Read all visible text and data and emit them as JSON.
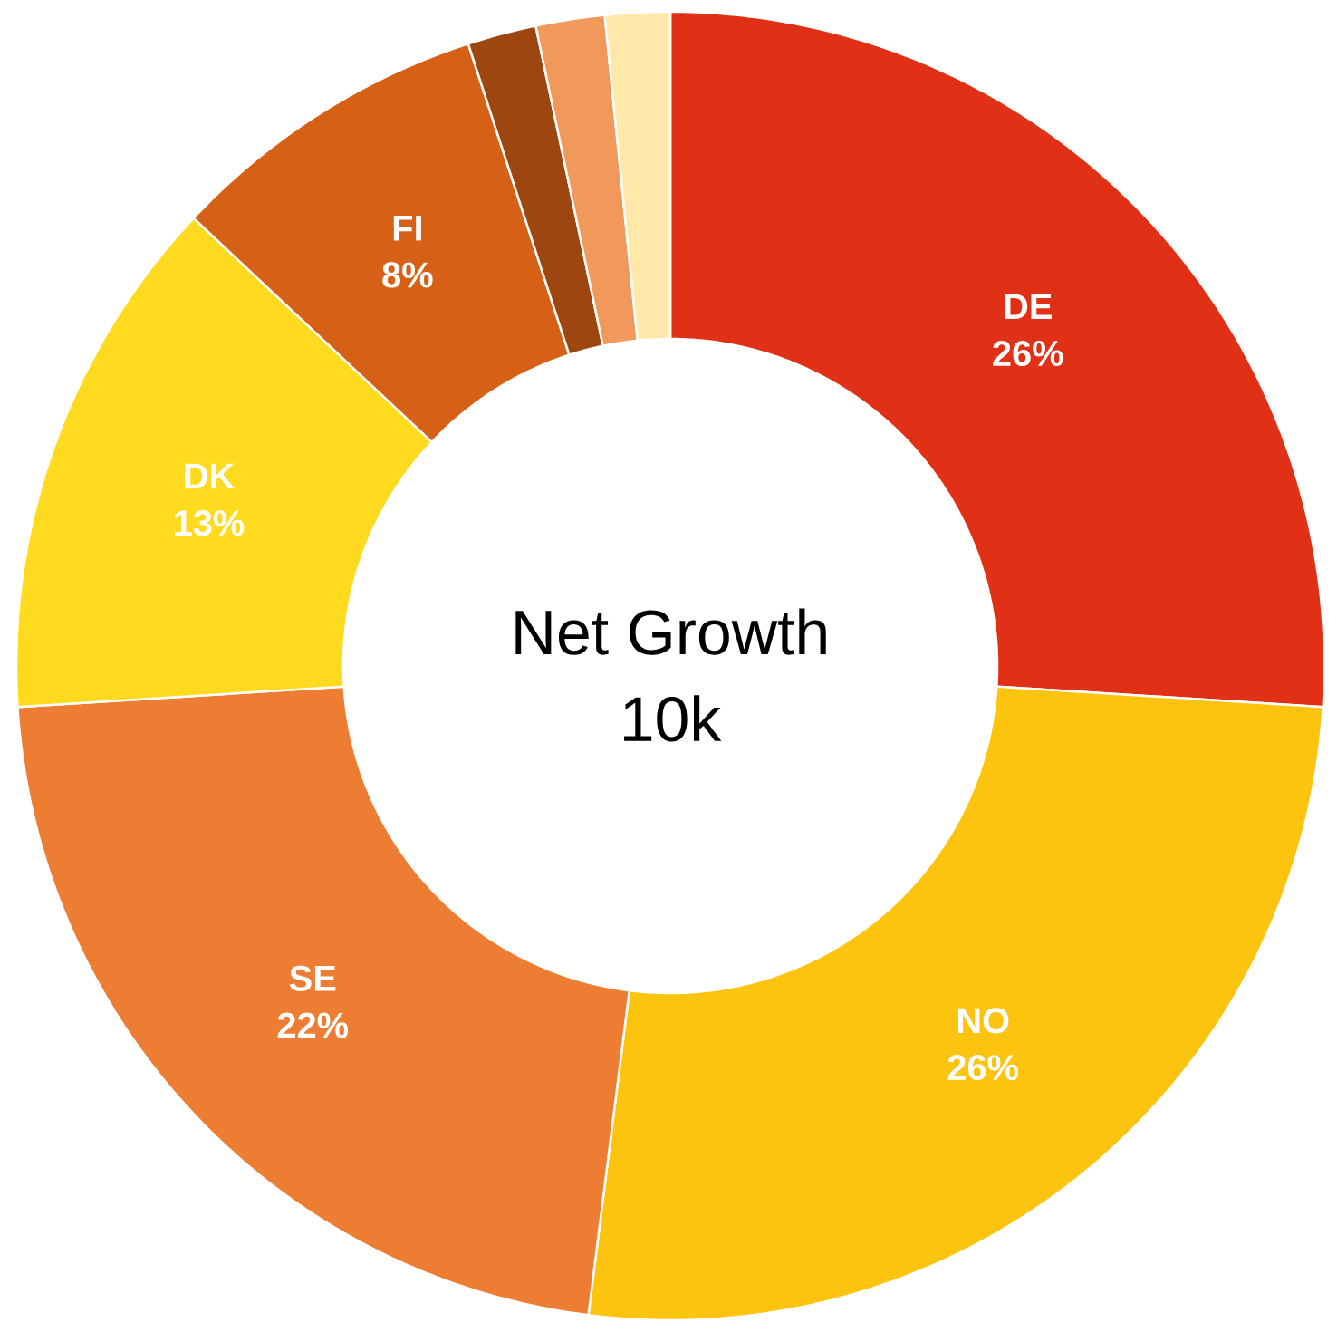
{
  "chart_data": {
    "type": "donut",
    "title": "Net Growth",
    "subtitle": "10k",
    "categories": [
      "DE",
      "NO",
      "SE",
      "DK",
      "FI",
      null,
      null,
      null
    ],
    "values": [
      26,
      26,
      22,
      13,
      8,
      1.7,
      1.7,
      1.6
    ],
    "value_labels": [
      "26%",
      "26%",
      "22%",
      "13%",
      "8%",
      null,
      null,
      null
    ],
    "colors": [
      "#e03015",
      "#fdc40f",
      "#ed7d33",
      "#ffda1f",
      "#d66016",
      "#9e4610",
      "#f1995b",
      "#ffe8a8"
    ]
  }
}
